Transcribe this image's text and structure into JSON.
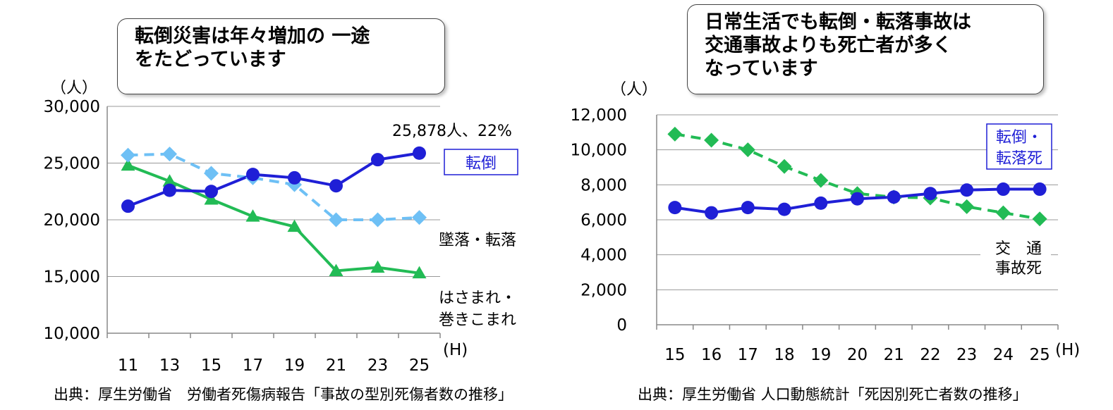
{
  "left_panel": {
    "callout_lines": [
      "転倒災害は年々増加の 一途",
      "をたどっています"
    ],
    "source": "出典：厚生労働省　労働者死傷病報告「事故の型別死傷者数の推移」"
  },
  "right_panel": {
    "callout_lines": [
      "日常生活でも転倒・転落事故は",
      "交通事故よりも死亡者が多く",
      "なっています"
    ],
    "source": "出典：厚生労働省 人口動態統計「死因別死亡者数の推移」"
  },
  "colors": {
    "fall": "#1f1fd6",
    "fall_from_height": "#6ec0f5",
    "caught": "#22bb55",
    "traffic": "#22bb55",
    "grid": "#999999"
  },
  "chart_data": [
    {
      "type": "line",
      "y_unit": "（人）",
      "x_unit": "(H)",
      "categories": [
        "11",
        "13",
        "15",
        "17",
        "19",
        "21",
        "23",
        "25"
      ],
      "x_tick_labels": [
        "11",
        "13",
        "15",
        "17",
        "19",
        "21",
        "23",
        "25"
      ],
      "ylim": [
        10000,
        30000
      ],
      "y_ticks": [
        10000,
        15000,
        20000,
        25000,
        30000
      ],
      "y_tick_labels": [
        "10,000",
        "15,000",
        "20,000",
        "25,000",
        "30,000"
      ],
      "grid": true,
      "annotation": "25,878人、22%",
      "series": [
        {
          "name": "転倒",
          "style": "solid-circle",
          "color": "#1f1fd6",
          "boxed_label": true,
          "values": [
            21200,
            22600,
            22500,
            24000,
            23700,
            23000,
            25300,
            25878
          ]
        },
        {
          "name": "墜落・転落",
          "style": "dashed-diamond",
          "color": "#6ec0f5",
          "values": [
            25700,
            25800,
            24100,
            23700,
            23100,
            20000,
            20000,
            20200
          ]
        },
        {
          "name_lines": [
            "はさまれ・",
            "巻きこまれ"
          ],
          "style": "solid-triangle",
          "color": "#22bb55",
          "values": [
            24800,
            23400,
            21800,
            20300,
            19400,
            15500,
            15800,
            15300
          ]
        }
      ]
    },
    {
      "type": "line",
      "y_unit": "（人）",
      "x_unit": "(H)",
      "categories": [
        "15",
        "16",
        "17",
        "18",
        "19",
        "20",
        "21",
        "22",
        "23",
        "24",
        "25"
      ],
      "ylim": [
        0,
        12000
      ],
      "y_ticks": [
        0,
        2000,
        4000,
        6000,
        8000,
        10000,
        12000
      ],
      "y_tick_labels": [
        "0",
        "2,000",
        "4,000",
        "6,000",
        "8,000",
        "10,000",
        "12,000"
      ],
      "grid": true,
      "series": [
        {
          "name_lines": [
            "転倒・",
            "転落死"
          ],
          "style": "solid-circle",
          "color": "#1f1fd6",
          "boxed_label": true,
          "values": [
            6700,
            6400,
            6700,
            6600,
            6950,
            7200,
            7300,
            7500,
            7700,
            7750,
            7750
          ]
        },
        {
          "name_lines": [
            "交　通",
            "事故死"
          ],
          "style": "dashed-diamond",
          "color": "#22bb55",
          "values": [
            10900,
            10550,
            10000,
            9050,
            8250,
            7500,
            7300,
            7250,
            6750,
            6400,
            6050
          ]
        }
      ]
    }
  ]
}
